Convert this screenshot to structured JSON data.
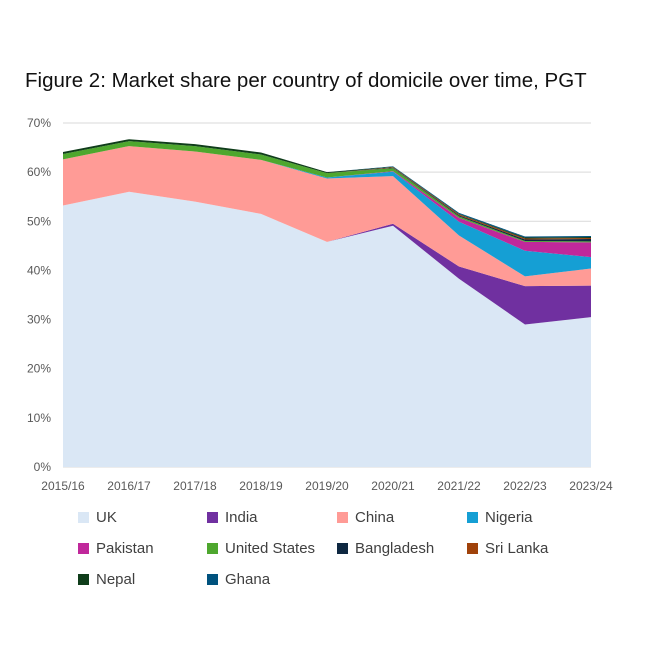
{
  "title": "Figure 2: Market share per country of domicile over time, PGT",
  "chart_data": {
    "type": "area",
    "stacked": true,
    "title": "Figure 2: Market share per country of domicile over time, PGT",
    "xlabel": "",
    "ylabel": "",
    "x": [
      "2015/16",
      "2016/17",
      "2017/18",
      "2018/19",
      "2019/20",
      "2020/21",
      "2021/22",
      "2022/23",
      "2023/24"
    ],
    "ylim": [
      0,
      70
    ],
    "yticks": [
      0,
      10,
      20,
      30,
      40,
      50,
      60,
      70
    ],
    "ytick_labels": [
      "0%",
      "10%",
      "20%",
      "30%",
      "40%",
      "50%",
      "60%",
      "70%"
    ],
    "grid": true,
    "legend_position": "bottom",
    "series": [
      {
        "name": "UK",
        "color": "#dae7f5",
        "values": [
          53.2,
          56.0,
          54.0,
          51.5,
          45.8,
          49.1,
          38.3,
          29.0,
          30.5
        ]
      },
      {
        "name": "India",
        "color": "#7030a0",
        "values": [
          0.0,
          0.0,
          0.0,
          0.0,
          0.0,
          0.4,
          2.5,
          7.8,
          6.4
        ]
      },
      {
        "name": "China",
        "color": "#ff9b96",
        "values": [
          9.4,
          9.3,
          10.2,
          11.0,
          12.9,
          9.7,
          6.3,
          2.0,
          3.5
        ]
      },
      {
        "name": "Nigeria",
        "color": "#159fd4",
        "values": [
          0.0,
          0.0,
          0.0,
          0.0,
          0.2,
          0.9,
          2.8,
          5.2,
          2.3
        ]
      },
      {
        "name": "Pakistan",
        "color": "#c0289b",
        "values": [
          0.0,
          0.0,
          0.0,
          0.0,
          0.0,
          0.1,
          0.8,
          1.8,
          3.0
        ]
      },
      {
        "name": "United States",
        "color": "#4ea72e",
        "values": [
          1.1,
          1.0,
          1.1,
          1.1,
          0.9,
          0.6,
          0.3,
          0.2,
          0.2
        ]
      },
      {
        "name": "Bangladesh",
        "color": "#0e2841",
        "values": [
          0.0,
          0.0,
          0.0,
          0.0,
          0.0,
          0.1,
          0.2,
          0.3,
          0.5
        ]
      },
      {
        "name": "Sri Lanka",
        "color": "#a0420a",
        "values": [
          0.0,
          0.0,
          0.0,
          0.0,
          0.0,
          0.1,
          0.2,
          0.2,
          0.2
        ]
      },
      {
        "name": "Nepal",
        "color": "#0f3d1a",
        "values": [
          0.4,
          0.4,
          0.4,
          0.4,
          0.2,
          0.1,
          0.1,
          0.2,
          0.2
        ]
      },
      {
        "name": "Ghana",
        "color": "#00527e",
        "values": [
          0.0,
          0.0,
          0.0,
          0.0,
          0.0,
          0.1,
          0.2,
          0.2,
          0.2
        ]
      }
    ]
  }
}
